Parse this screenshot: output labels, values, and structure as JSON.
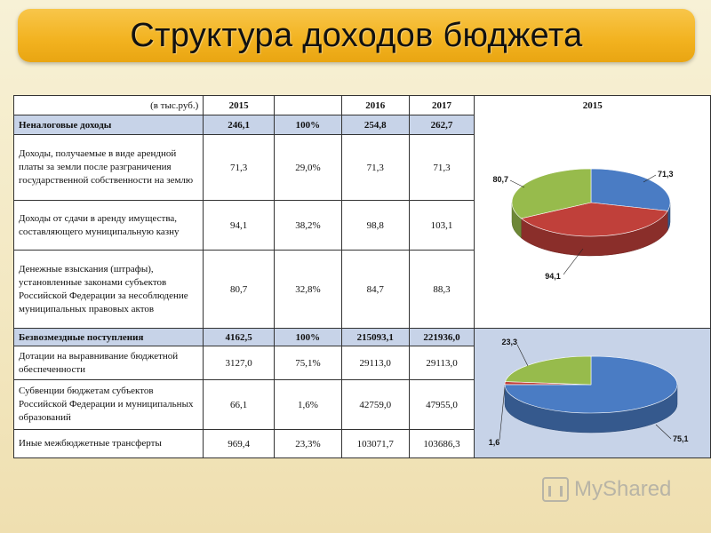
{
  "title": "Структура доходов бюджета",
  "table": {
    "unit": "(в тыс.руб.)",
    "years": [
      "2015",
      "2016",
      "2017"
    ],
    "chart_year": "2015",
    "sections": [
      {
        "label": "Неналоговые доходы",
        "y2015": "246,1",
        "share": "100%",
        "y2016": "254,8",
        "y2017": "262,7",
        "rows": [
          {
            "label": "Доходы, получаемые в виде арендной платы за земли после разграничения государственной собственности на землю",
            "y2015": "71,3",
            "share": "29,0%",
            "y2016": "71,3",
            "y2017": "71,3"
          },
          {
            "label": "Доходы от сдачи в аренду имущества, составляющего муниципальную казну",
            "y2015": "94,1",
            "share": "38,2%",
            "y2016": "98,8",
            "y2017": "103,1"
          },
          {
            "label": "Денежные взыскания (штрафы), установленные законами субъектов Российской Федерации за несоблюдение муниципальных правовых актов",
            "y2015": "80,7",
            "share": "32,8%",
            "y2016": "84,7",
            "y2017": "88,3"
          }
        ]
      },
      {
        "label": "Безвозмездные поступления",
        "y2015": "4162,5",
        "share": "100%",
        "y2016": "215093,1",
        "y2017": "221936,0",
        "rows": [
          {
            "label": "Дотации на выравнивание бюджетной обеспеченности",
            "y2015": "3127,0",
            "share": "75,1%",
            "y2016": "29113,0",
            "y2017": "29113,0"
          },
          {
            "label": "Субвенции бюджетам субъектов Российской Федерации и муниципальных образований",
            "y2015": "66,1",
            "share": "1,6%",
            "y2016": "42759,0",
            "y2017": "47955,0"
          },
          {
            "label": "Иные межбюджетные трансферты",
            "y2015": "969,4",
            "share": "23,3%",
            "y2016": "103071,7",
            "y2017": "103686,3"
          }
        ]
      }
    ]
  },
  "chart_data": [
    {
      "type": "pie",
      "title": "2015",
      "values": [
        71.3,
        94.1,
        80.7
      ],
      "labels": [
        "71,3",
        "94,1",
        "80,7"
      ],
      "colors": [
        "#4a7cc4",
        "#c0403a",
        "#97bb4c"
      ]
    },
    {
      "type": "pie",
      "title": "",
      "values": [
        75.1,
        1.6,
        23.3
      ],
      "labels": [
        "75,1",
        "1,6",
        "23,3"
      ],
      "colors": [
        "#4a7cc4",
        "#c0403a",
        "#97bb4c"
      ]
    }
  ],
  "watermark": {
    "text": "MyShared"
  }
}
